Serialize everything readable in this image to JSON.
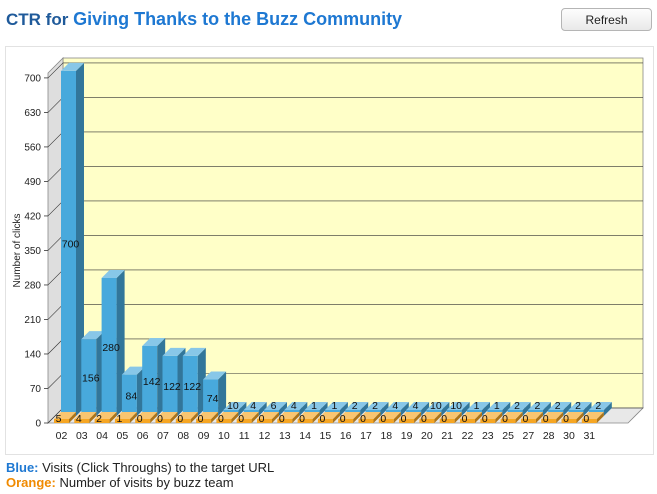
{
  "header": {
    "title_prefix": "CTR for",
    "campaign_name": "Giving Thanks to the Buzz Community",
    "refresh_label": "Refresh"
  },
  "legend": {
    "blue_label": "Blue:",
    "blue_text": "Visits (Click Throughs) to the target URL",
    "orange_label": "Orange:",
    "orange_text": "Number of visits by buzz team"
  },
  "chart_data": {
    "type": "bar",
    "ylabel": "Number of clicks",
    "xlabel": "",
    "ylim": [
      0,
      700
    ],
    "yticks": [
      0,
      70,
      140,
      210,
      280,
      350,
      420,
      490,
      560,
      630,
      700
    ],
    "categories": [
      "02",
      "03",
      "04",
      "05",
      "06",
      "07",
      "08",
      "09",
      "10",
      "11",
      "12",
      "13",
      "14",
      "15",
      "16",
      "17",
      "18",
      "19",
      "20",
      "21",
      "22",
      "23",
      "25",
      "27",
      "28",
      "30",
      "31"
    ],
    "series": [
      {
        "name": "Visits (Click Throughs) to the target URL",
        "color": "#48a9dc",
        "values": [
          700,
          156,
          280,
          84,
          142,
          122,
          122,
          74,
          10,
          4,
          6,
          4,
          1,
          1,
          2,
          2,
          4,
          4,
          10,
          10,
          1,
          1,
          2,
          2,
          2,
          2,
          2
        ]
      },
      {
        "name": "Number of visits by buzz team",
        "color": "#f6a623",
        "values": [
          5,
          4,
          2,
          1,
          0,
          0,
          0,
          0,
          0,
          0,
          0,
          0,
          0,
          0,
          0,
          0,
          0,
          0,
          0,
          0,
          0,
          0,
          0,
          0,
          0,
          0,
          0
        ]
      }
    ],
    "colors": {
      "plot_bg": "#ffffc8",
      "grid": "#333333",
      "side_wall": "#dedede"
    }
  }
}
